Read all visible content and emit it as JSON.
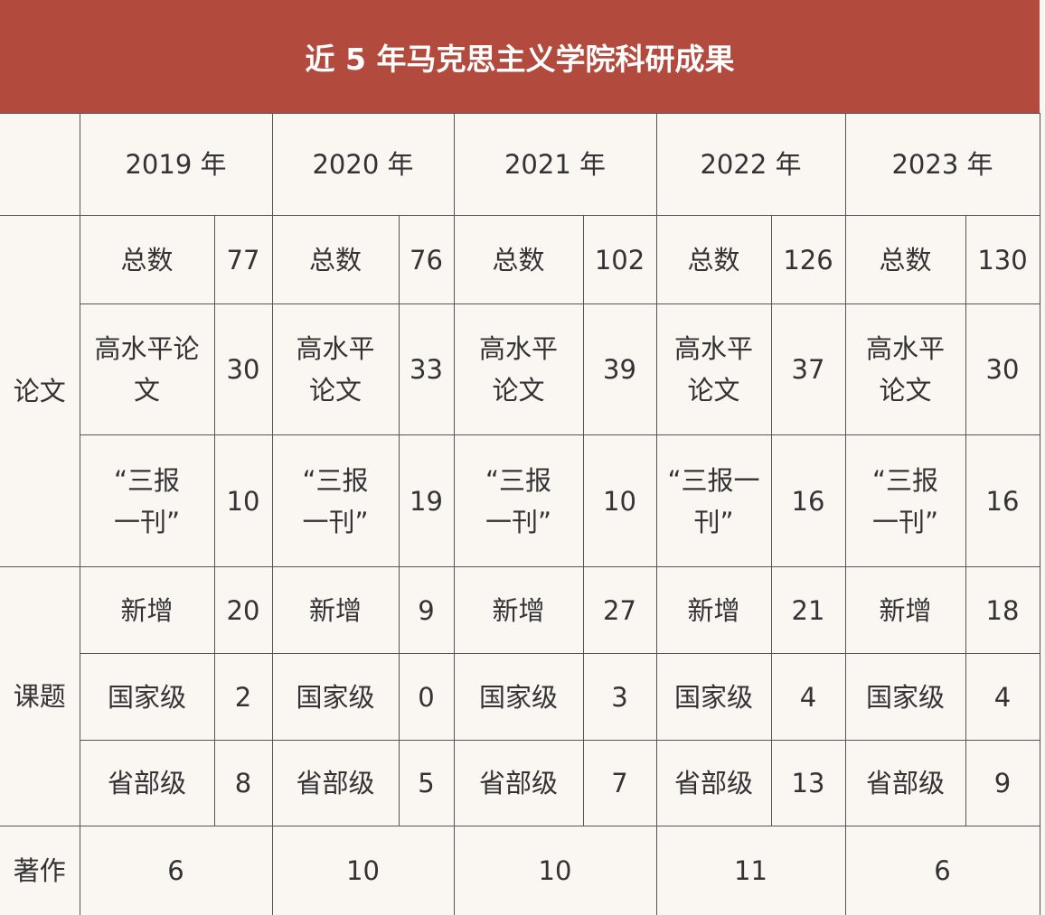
{
  "title": "近 5 年马克思主义学院科研成果",
  "years": [
    "2019 年",
    "2020 年",
    "2021 年",
    "2022 年",
    "2023 年"
  ],
  "sections": {
    "papers": "论文",
    "projects": "课题",
    "books": "著作"
  },
  "labels": {
    "total": "总数",
    "high": "高水平论文",
    "sanbao": "“三报一刊”",
    "new": "新增",
    "national": "国家级",
    "provincial": "省部级"
  },
  "values": {
    "total": [
      "77",
      "76",
      "102",
      "126",
      "130"
    ],
    "high": [
      "30",
      "33",
      "39",
      "37",
      "30"
    ],
    "sanbao": [
      "10",
      "19",
      "10",
      "16",
      "16"
    ],
    "new": [
      "20",
      "9",
      "27",
      "21",
      "18"
    ],
    "national": [
      "2",
      "0",
      "3",
      "4",
      "4"
    ],
    "provincial": [
      "8",
      "5",
      "7",
      "13",
      "9"
    ],
    "books": [
      "6",
      "10",
      "10",
      "11",
      "6"
    ]
  },
  "colors": {
    "header": "#b24a3d",
    "background": "#faf6f2"
  }
}
